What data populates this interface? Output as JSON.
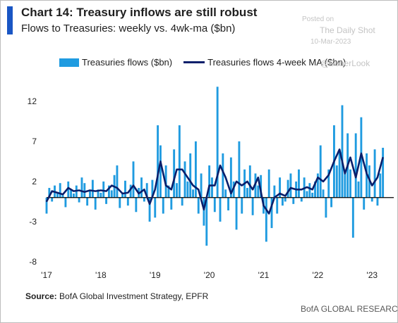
{
  "header": {
    "title": "Chart 14: Treasury inflows are still robust",
    "subtitle": "Flows to Treasuries: weekly vs. 4wk-ma ($bn)"
  },
  "watermark": {
    "line1": "Posted on",
    "line2": "The Daily Shot",
    "line3": "10-Mar-2023",
    "line4": "@SoberLook"
  },
  "footer": {
    "source_label": "Source:",
    "source_text": "BofA Global Investment Strategy, EPFR",
    "brand": "BofA GLOBAL RESEARCH"
  },
  "colors": {
    "bars": "#1f9be0",
    "ma_line": "#0a1f6b",
    "accent": "#1a56c4"
  },
  "chart_data": {
    "type": "bar",
    "title": "Chart 14: Treasury inflows are still robust",
    "subtitle": "Flows to Treasuries: weekly vs. 4wk-ma ($bn)",
    "xlabel": "",
    "ylabel": "",
    "ylim": [
      -8,
      14
    ],
    "yticks": [
      12,
      7,
      2,
      -3,
      -8
    ],
    "xticks": [
      "'17",
      "'18",
      "'19",
      "'20",
      "'21",
      "'22",
      "'23"
    ],
    "xlim": [
      2017.0,
      2023.4
    ],
    "legend": {
      "position": "top",
      "entries": [
        "Treasuries flows ($bn)",
        "Treasuries flows 4-week MA ($bn)"
      ]
    },
    "grid": false,
    "series": [
      {
        "name": "Treasuries flows ($bn)",
        "kind": "bar",
        "x": [
          2017.0,
          2017.05,
          2017.1,
          2017.15,
          2017.2,
          2017.25,
          2017.3,
          2017.35,
          2017.4,
          2017.45,
          2017.5,
          2017.55,
          2017.6,
          2017.65,
          2017.7,
          2017.75,
          2017.8,
          2017.85,
          2017.9,
          2017.95,
          2018.0,
          2018.05,
          2018.1,
          2018.15,
          2018.2,
          2018.25,
          2018.3,
          2018.35,
          2018.4,
          2018.45,
          2018.5,
          2018.55,
          2018.6,
          2018.65,
          2018.7,
          2018.75,
          2018.8,
          2018.85,
          2018.9,
          2018.95,
          2019.0,
          2019.05,
          2019.1,
          2019.15,
          2019.2,
          2019.25,
          2019.3,
          2019.35,
          2019.4,
          2019.45,
          2019.5,
          2019.55,
          2019.6,
          2019.65,
          2019.7,
          2019.75,
          2019.8,
          2019.85,
          2019.9,
          2019.95,
          2020.0,
          2020.05,
          2020.1,
          2020.15,
          2020.2,
          2020.25,
          2020.3,
          2020.35,
          2020.4,
          2020.45,
          2020.5,
          2020.55,
          2020.6,
          2020.65,
          2020.7,
          2020.75,
          2020.8,
          2020.85,
          2020.9,
          2020.95,
          2021.0,
          2021.05,
          2021.1,
          2021.15,
          2021.2,
          2021.25,
          2021.3,
          2021.35,
          2021.4,
          2021.45,
          2021.5,
          2021.55,
          2021.6,
          2021.65,
          2021.7,
          2021.75,
          2021.8,
          2021.85,
          2021.9,
          2021.95,
          2022.0,
          2022.05,
          2022.1,
          2022.15,
          2022.2,
          2022.25,
          2022.3,
          2022.35,
          2022.4,
          2022.45,
          2022.5,
          2022.55,
          2022.6,
          2022.65,
          2022.7,
          2022.75,
          2022.8,
          2022.85,
          2022.9,
          2022.95,
          2023.0,
          2023.05,
          2023.1,
          2023.15,
          2023.2
        ],
        "values": [
          -2.0,
          1.2,
          -0.5,
          1.5,
          0.5,
          1.8,
          0.3,
          -1.2,
          2.0,
          1.0,
          0.5,
          1.5,
          -0.6,
          2.5,
          1.8,
          -1.0,
          0.8,
          2.2,
          -1.5,
          1.0,
          0.6,
          2.0,
          -0.8,
          1.5,
          0.9,
          2.8,
          4.0,
          -1.3,
          0.6,
          2.1,
          -1.0,
          1.6,
          4.5,
          -1.8,
          1.2,
          2.5,
          -0.5,
          1.8,
          -3.0,
          2.2,
          -2.5,
          9.0,
          6.5,
          -2.0,
          4.0,
          1.5,
          -1.5,
          6.0,
          1.8,
          9.0,
          -1.0,
          4.5,
          2.0,
          5.5,
          1.0,
          7.0,
          -2.0,
          3.0,
          -3.5,
          -6.0,
          4.0,
          2.5,
          -1.8,
          13.8,
          -3.0,
          5.5,
          1.0,
          -1.6,
          5.0,
          2.0,
          -4.0,
          7.0,
          -2.0,
          3.5,
          1.2,
          4.0,
          -2.2,
          3.0,
          1.5,
          2.8,
          -2.0,
          -5.5,
          3.5,
          -3.8,
          1.5,
          -2.0,
          2.5,
          -1.0,
          -0.5,
          2.2,
          3.0,
          -0.8,
          2.0,
          3.5,
          -0.5,
          2.5,
          0.8,
          1.8,
          0.6,
          2.0,
          3.0,
          6.5,
          1.0,
          -2.5,
          3.5,
          -1.2,
          9.0,
          4.0,
          6.0,
          11.5,
          3.0,
          8.0,
          3.5,
          -5.0,
          8.0,
          2.0,
          10.0,
          -1.5,
          5.5,
          4.0,
          -0.5,
          6.0,
          -1.0,
          3.0,
          6.2
        ]
      },
      {
        "name": "Treasuries flows 4-week MA ($bn)",
        "kind": "line",
        "x": [
          2017.0,
          2017.1,
          2017.2,
          2017.3,
          2017.4,
          2017.5,
          2017.6,
          2017.7,
          2017.8,
          2017.9,
          2018.0,
          2018.1,
          2018.2,
          2018.3,
          2018.4,
          2018.5,
          2018.6,
          2018.7,
          2018.8,
          2018.9,
          2019.0,
          2019.1,
          2019.2,
          2019.3,
          2019.4,
          2019.5,
          2019.6,
          2019.7,
          2019.8,
          2019.9,
          2020.0,
          2020.1,
          2020.2,
          2020.3,
          2020.4,
          2020.5,
          2020.6,
          2020.7,
          2020.8,
          2020.9,
          2021.0,
          2021.1,
          2021.2,
          2021.3,
          2021.4,
          2021.5,
          2021.6,
          2021.7,
          2021.8,
          2021.9,
          2022.0,
          2022.1,
          2022.2,
          2022.3,
          2022.4,
          2022.5,
          2022.6,
          2022.7,
          2022.8,
          2022.9,
          2023.0,
          2023.1,
          2023.2
        ],
        "values": [
          -0.5,
          0.8,
          0.6,
          0.4,
          1.2,
          0.8,
          0.9,
          0.7,
          0.9,
          0.8,
          0.9,
          0.8,
          1.5,
          1.2,
          0.5,
          0.6,
          1.5,
          0.5,
          1.0,
          -0.8,
          1.0,
          4.5,
          1.5,
          1.0,
          3.5,
          3.5,
          2.5,
          1.5,
          1.0,
          -1.5,
          1.5,
          1.5,
          4.0,
          2.5,
          0.5,
          2.0,
          1.5,
          2.0,
          1.0,
          2.5,
          -1.0,
          -2.0,
          0.0,
          0.5,
          0.2,
          1.2,
          1.0,
          1.0,
          1.3,
          1.0,
          2.5,
          2.0,
          2.8,
          4.5,
          6.0,
          3.0,
          5.0,
          2.5,
          5.5,
          3.0,
          1.5,
          2.5,
          5.0
        ]
      }
    ]
  }
}
